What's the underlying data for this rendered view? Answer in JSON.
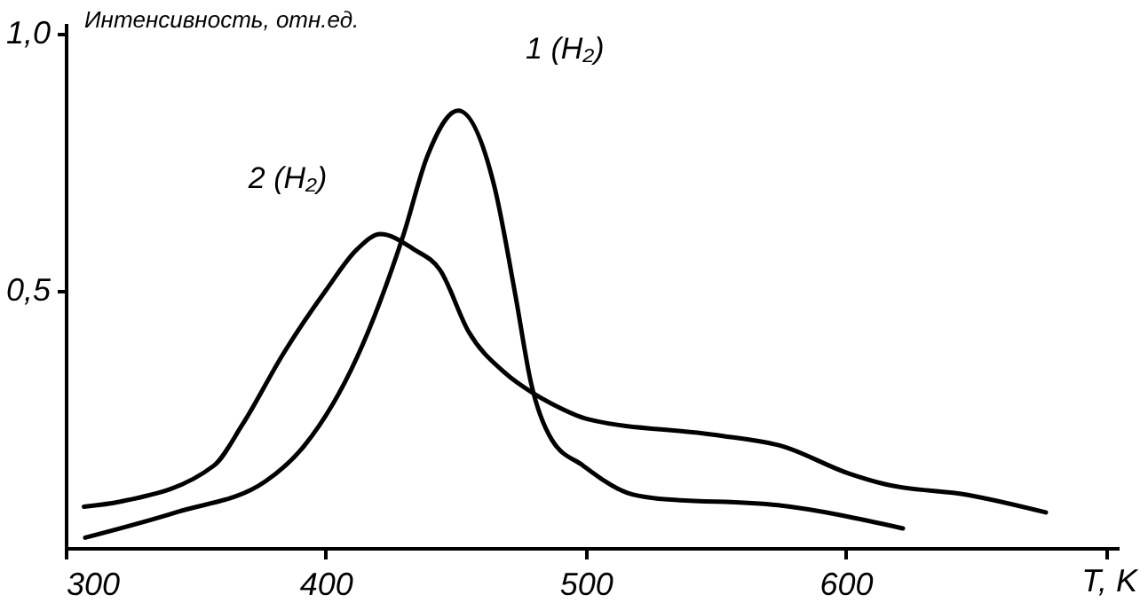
{
  "chart_data": {
    "type": "line",
    "xlabel": "T, K",
    "ylabel": "Интенсивность, отн.ед.",
    "xlim": [
      300,
      705
    ],
    "ylim": [
      0,
      1.02
    ],
    "xticks": [
      300,
      400,
      500,
      600,
      {
        "value": 700,
        "label": null
      }
    ],
    "yticks": [
      {
        "value": 0.5,
        "label": "0,5"
      },
      {
        "value": 1,
        "label": "1,0"
      }
    ],
    "grid": false,
    "marker": "none",
    "line_style": "solid",
    "annotations": [
      {
        "text": "1 (H₂)",
        "x": 453,
        "y": 0.84
      },
      {
        "text": "2 (H₂)",
        "x": 421,
        "y": 0.61
      }
    ],
    "series": [
      {
        "color": "#000000",
        "x": [
          307.5,
          343,
          377,
          392,
          412,
          430,
          439,
          451,
          465,
          473,
          479,
          487,
          499,
          516,
          526,
          574,
          622
        ],
        "values": [
          0.02,
          0.07,
          0.13,
          0.2,
          0.37,
          0.61,
          0.76,
          0.85,
          0.7,
          0.49,
          0.32,
          0.21,
          0.16,
          0.107,
          0.097,
          0.083,
          0.038
        ]
      },
      {
        "color": "#000000",
        "x": [
          307,
          321,
          357,
          368,
          384,
          400,
          412,
          421,
          434,
          444,
          455,
          469,
          480,
          487,
          501,
          549,
          576,
          601,
          615,
          647,
          677
        ],
        "values": [
          0.08,
          0.09,
          0.16,
          0.24,
          0.38,
          0.5,
          0.58,
          0.61,
          0.58,
          0.54,
          0.42,
          0.34,
          0.3,
          0.28,
          0.25,
          0.22,
          0.197,
          0.145,
          0.124,
          0.103,
          0.069
        ]
      }
    ]
  }
}
